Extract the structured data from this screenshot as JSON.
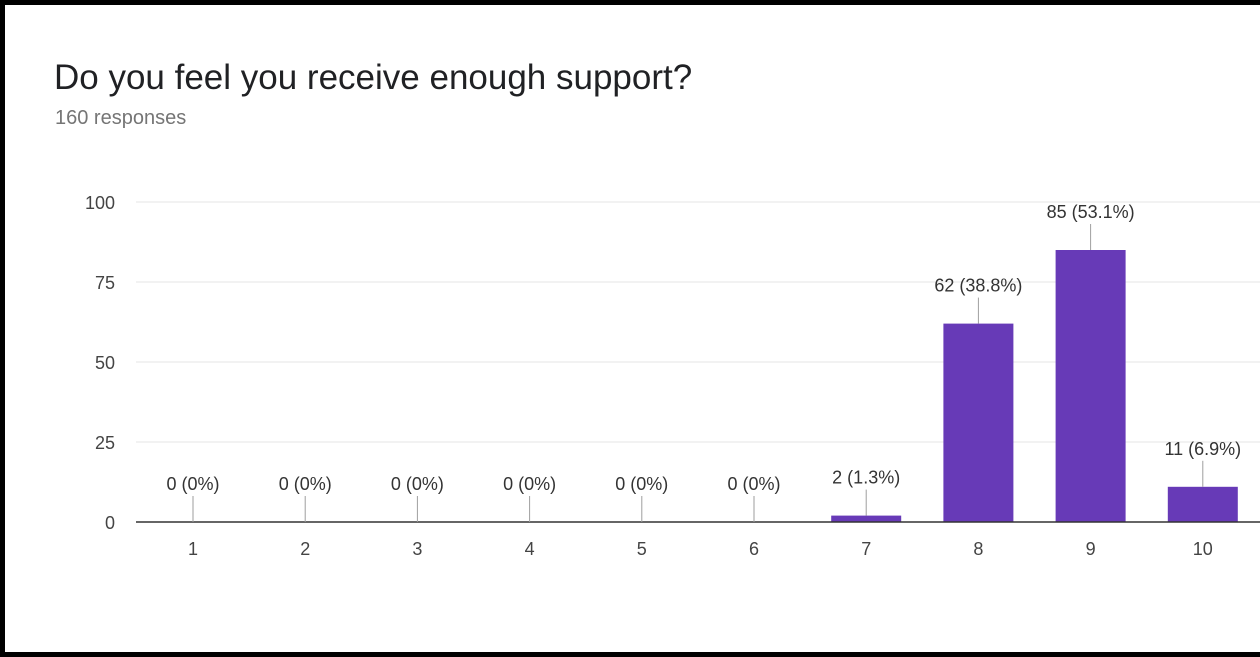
{
  "question": {
    "title": "Do you feel you receive enough support?",
    "responses": "160 responses"
  },
  "chart_data": {
    "type": "bar",
    "title": "Do you feel you receive enough support?",
    "subtitle": "160 responses",
    "xlabel": "",
    "ylabel": "",
    "categories": [
      "1",
      "2",
      "3",
      "4",
      "5",
      "6",
      "7",
      "8",
      "9",
      "10"
    ],
    "values": [
      0,
      0,
      0,
      0,
      0,
      0,
      2,
      62,
      85,
      11
    ],
    "data_labels": [
      "0 (0%)",
      "0 (0%)",
      "0 (0%)",
      "0 (0%)",
      "0 (0%)",
      "0 (0%)",
      "2 (1.3%)",
      "62 (38.8%)",
      "85 (53.1%)",
      "11 (6.9%)"
    ],
    "ylim": [
      0,
      100
    ],
    "yticks": [
      0,
      25,
      50,
      75,
      100
    ],
    "grid": true,
    "legend": "none",
    "bar_color": "#673ab7"
  }
}
